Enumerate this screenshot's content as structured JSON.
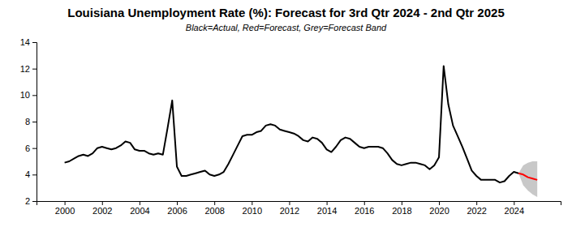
{
  "chart_data": {
    "type": "line",
    "title": "Louisiana Unemployment Rate (%): Forecast for 3rd Qtr 2024 - 2nd Qtr 2025",
    "subtitle": "Black=Actual, Red=Forecast, Grey=Forecast Band",
    "x": [
      2000,
      2000.25,
      2000.5,
      2000.75,
      2001,
      2001.25,
      2001.5,
      2001.75,
      2002,
      2002.25,
      2002.5,
      2002.75,
      2003,
      2003.25,
      2003.5,
      2003.75,
      2004,
      2004.25,
      2004.5,
      2004.75,
      2005,
      2005.25,
      2005.5,
      2005.75,
      2006,
      2006.25,
      2006.5,
      2006.75,
      2007,
      2007.25,
      2007.5,
      2007.75,
      2008,
      2008.25,
      2008.5,
      2008.75,
      2009,
      2009.25,
      2009.5,
      2009.75,
      2010,
      2010.25,
      2010.5,
      2010.75,
      2011,
      2011.25,
      2011.5,
      2011.75,
      2012,
      2012.25,
      2012.5,
      2012.75,
      2013,
      2013.25,
      2013.5,
      2013.75,
      2014,
      2014.25,
      2014.5,
      2014.75,
      2015,
      2015.25,
      2015.5,
      2015.75,
      2016,
      2016.25,
      2016.5,
      2016.75,
      2017,
      2017.25,
      2017.5,
      2017.75,
      2018,
      2018.25,
      2018.5,
      2018.75,
      2019,
      2019.25,
      2019.5,
      2019.75,
      2020,
      2020.25,
      2020.5,
      2020.75,
      2021,
      2021.25,
      2021.5,
      2021.75,
      2022,
      2022.25,
      2022.5,
      2022.75,
      2023,
      2023.25,
      2023.5,
      2023.75,
      2024,
      2024.25,
      2024.5,
      2024.75,
      2025,
      2025.25
    ],
    "series": [
      {
        "type": "band",
        "color": "#c8c8c8",
        "lower": [
          null,
          null,
          null,
          null,
          null,
          null,
          null,
          null,
          null,
          null,
          null,
          null,
          null,
          null,
          null,
          null,
          null,
          null,
          null,
          null,
          null,
          null,
          null,
          null,
          null,
          null,
          null,
          null,
          null,
          null,
          null,
          null,
          null,
          null,
          null,
          null,
          null,
          null,
          null,
          null,
          null,
          null,
          null,
          null,
          null,
          null,
          null,
          null,
          null,
          null,
          null,
          null,
          null,
          null,
          null,
          null,
          null,
          null,
          null,
          null,
          null,
          null,
          null,
          null,
          null,
          null,
          null,
          null,
          null,
          null,
          null,
          null,
          null,
          null,
          null,
          null,
          null,
          null,
          null,
          null,
          null,
          null,
          null,
          null,
          null,
          null,
          null,
          null,
          null,
          null,
          null,
          null,
          null,
          null,
          null,
          null,
          null,
          4.1,
          3.2,
          2.8,
          2.5,
          2.3
        ],
        "upper": [
          null,
          null,
          null,
          null,
          null,
          null,
          null,
          null,
          null,
          null,
          null,
          null,
          null,
          null,
          null,
          null,
          null,
          null,
          null,
          null,
          null,
          null,
          null,
          null,
          null,
          null,
          null,
          null,
          null,
          null,
          null,
          null,
          null,
          null,
          null,
          null,
          null,
          null,
          null,
          null,
          null,
          null,
          null,
          null,
          null,
          null,
          null,
          null,
          null,
          null,
          null,
          null,
          null,
          null,
          null,
          null,
          null,
          null,
          null,
          null,
          null,
          null,
          null,
          null,
          null,
          null,
          null,
          null,
          null,
          null,
          null,
          null,
          null,
          null,
          null,
          null,
          null,
          null,
          null,
          null,
          null,
          null,
          null,
          null,
          null,
          null,
          null,
          null,
          null,
          null,
          null,
          null,
          null,
          null,
          null,
          null,
          null,
          4.1,
          4.7,
          4.9,
          5.0,
          5.0
        ]
      },
      {
        "type": "line",
        "color": "#000000",
        "values": [
          4.9,
          5.0,
          5.2,
          5.4,
          5.5,
          5.4,
          5.6,
          6.0,
          6.1,
          6.0,
          5.9,
          6.0,
          6.2,
          6.5,
          6.4,
          5.9,
          5.8,
          5.8,
          5.6,
          5.5,
          5.6,
          5.5,
          7.5,
          9.6,
          4.6,
          3.9,
          3.9,
          4.0,
          4.1,
          4.2,
          4.3,
          4.0,
          3.9,
          4.0,
          4.2,
          4.8,
          5.5,
          6.2,
          6.9,
          7.0,
          7.0,
          7.2,
          7.3,
          7.7,
          7.8,
          7.7,
          7.4,
          7.3,
          7.2,
          7.1,
          6.9,
          6.6,
          6.5,
          6.8,
          6.7,
          6.4,
          5.9,
          5.7,
          6.1,
          6.6,
          6.8,
          6.7,
          6.4,
          6.1,
          6.0,
          6.1,
          6.1,
          6.1,
          6.0,
          5.6,
          5.1,
          4.8,
          4.7,
          4.8,
          4.9,
          4.9,
          4.8,
          4.7,
          4.4,
          4.7,
          5.3,
          12.2,
          9.3,
          7.7,
          6.9,
          6.1,
          5.2,
          4.3,
          3.9,
          3.6,
          3.6,
          3.6,
          3.6,
          3.4,
          3.5,
          3.9,
          4.2,
          4.1,
          null,
          null,
          null,
          null
        ]
      },
      {
        "type": "line",
        "color": "#ff0000",
        "values": [
          null,
          null,
          null,
          null,
          null,
          null,
          null,
          null,
          null,
          null,
          null,
          null,
          null,
          null,
          null,
          null,
          null,
          null,
          null,
          null,
          null,
          null,
          null,
          null,
          null,
          null,
          null,
          null,
          null,
          null,
          null,
          null,
          null,
          null,
          null,
          null,
          null,
          null,
          null,
          null,
          null,
          null,
          null,
          null,
          null,
          null,
          null,
          null,
          null,
          null,
          null,
          null,
          null,
          null,
          null,
          null,
          null,
          null,
          null,
          null,
          null,
          null,
          null,
          null,
          null,
          null,
          null,
          null,
          null,
          null,
          null,
          null,
          null,
          null,
          null,
          null,
          null,
          null,
          null,
          null,
          null,
          null,
          null,
          null,
          null,
          null,
          null,
          null,
          null,
          null,
          null,
          null,
          null,
          null,
          null,
          null,
          null,
          4.1,
          4.0,
          3.8,
          3.7,
          3.6
        ]
      }
    ],
    "xlim": [
      1998.5,
      2026.5
    ],
    "xticks": [
      2000,
      2002,
      2004,
      2006,
      2008,
      2010,
      2012,
      2014,
      2016,
      2018,
      2020,
      2022,
      2024
    ],
    "ylim": [
      2,
      14
    ],
    "yticks": [
      2,
      4,
      6,
      8,
      10,
      12,
      14
    ],
    "grid": false
  }
}
